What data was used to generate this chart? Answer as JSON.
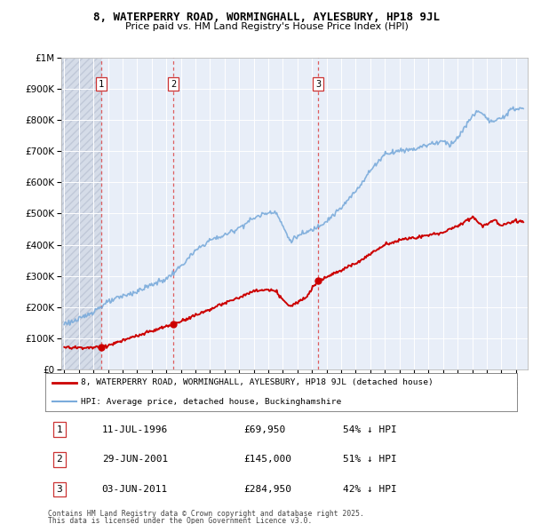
{
  "title_line1": "8, WATERPERRY ROAD, WORMINGHALL, AYLESBURY, HP18 9JL",
  "title_line2": "Price paid vs. HM Land Registry's House Price Index (HPI)",
  "hpi_label": "HPI: Average price, detached house, Buckinghamshire",
  "property_label": "8, WATERPERRY ROAD, WORMINGHALL, AYLESBURY, HP18 9JL (detached house)",
  "footer1": "Contains HM Land Registry data © Crown copyright and database right 2025.",
  "footer2": "This data is licensed under the Open Government Licence v3.0.",
  "sales": [
    {
      "num": 1,
      "date": "11-JUL-1996",
      "price": 69950,
      "pct": "54% ↓ HPI",
      "year": 1996.53
    },
    {
      "num": 2,
      "date": "29-JUN-2001",
      "price": 145000,
      "pct": "51% ↓ HPI",
      "year": 2001.49
    },
    {
      "num": 3,
      "date": "03-JUN-2011",
      "price": 284950,
      "pct": "42% ↓ HPI",
      "year": 2011.42
    }
  ],
  "property_color": "#cc0000",
  "hpi_color": "#7aabdb",
  "background_color": "#e8eef8",
  "ylim": [
    0,
    1000000
  ],
  "xlim_start": 1993.8,
  "xlim_end": 2025.8
}
